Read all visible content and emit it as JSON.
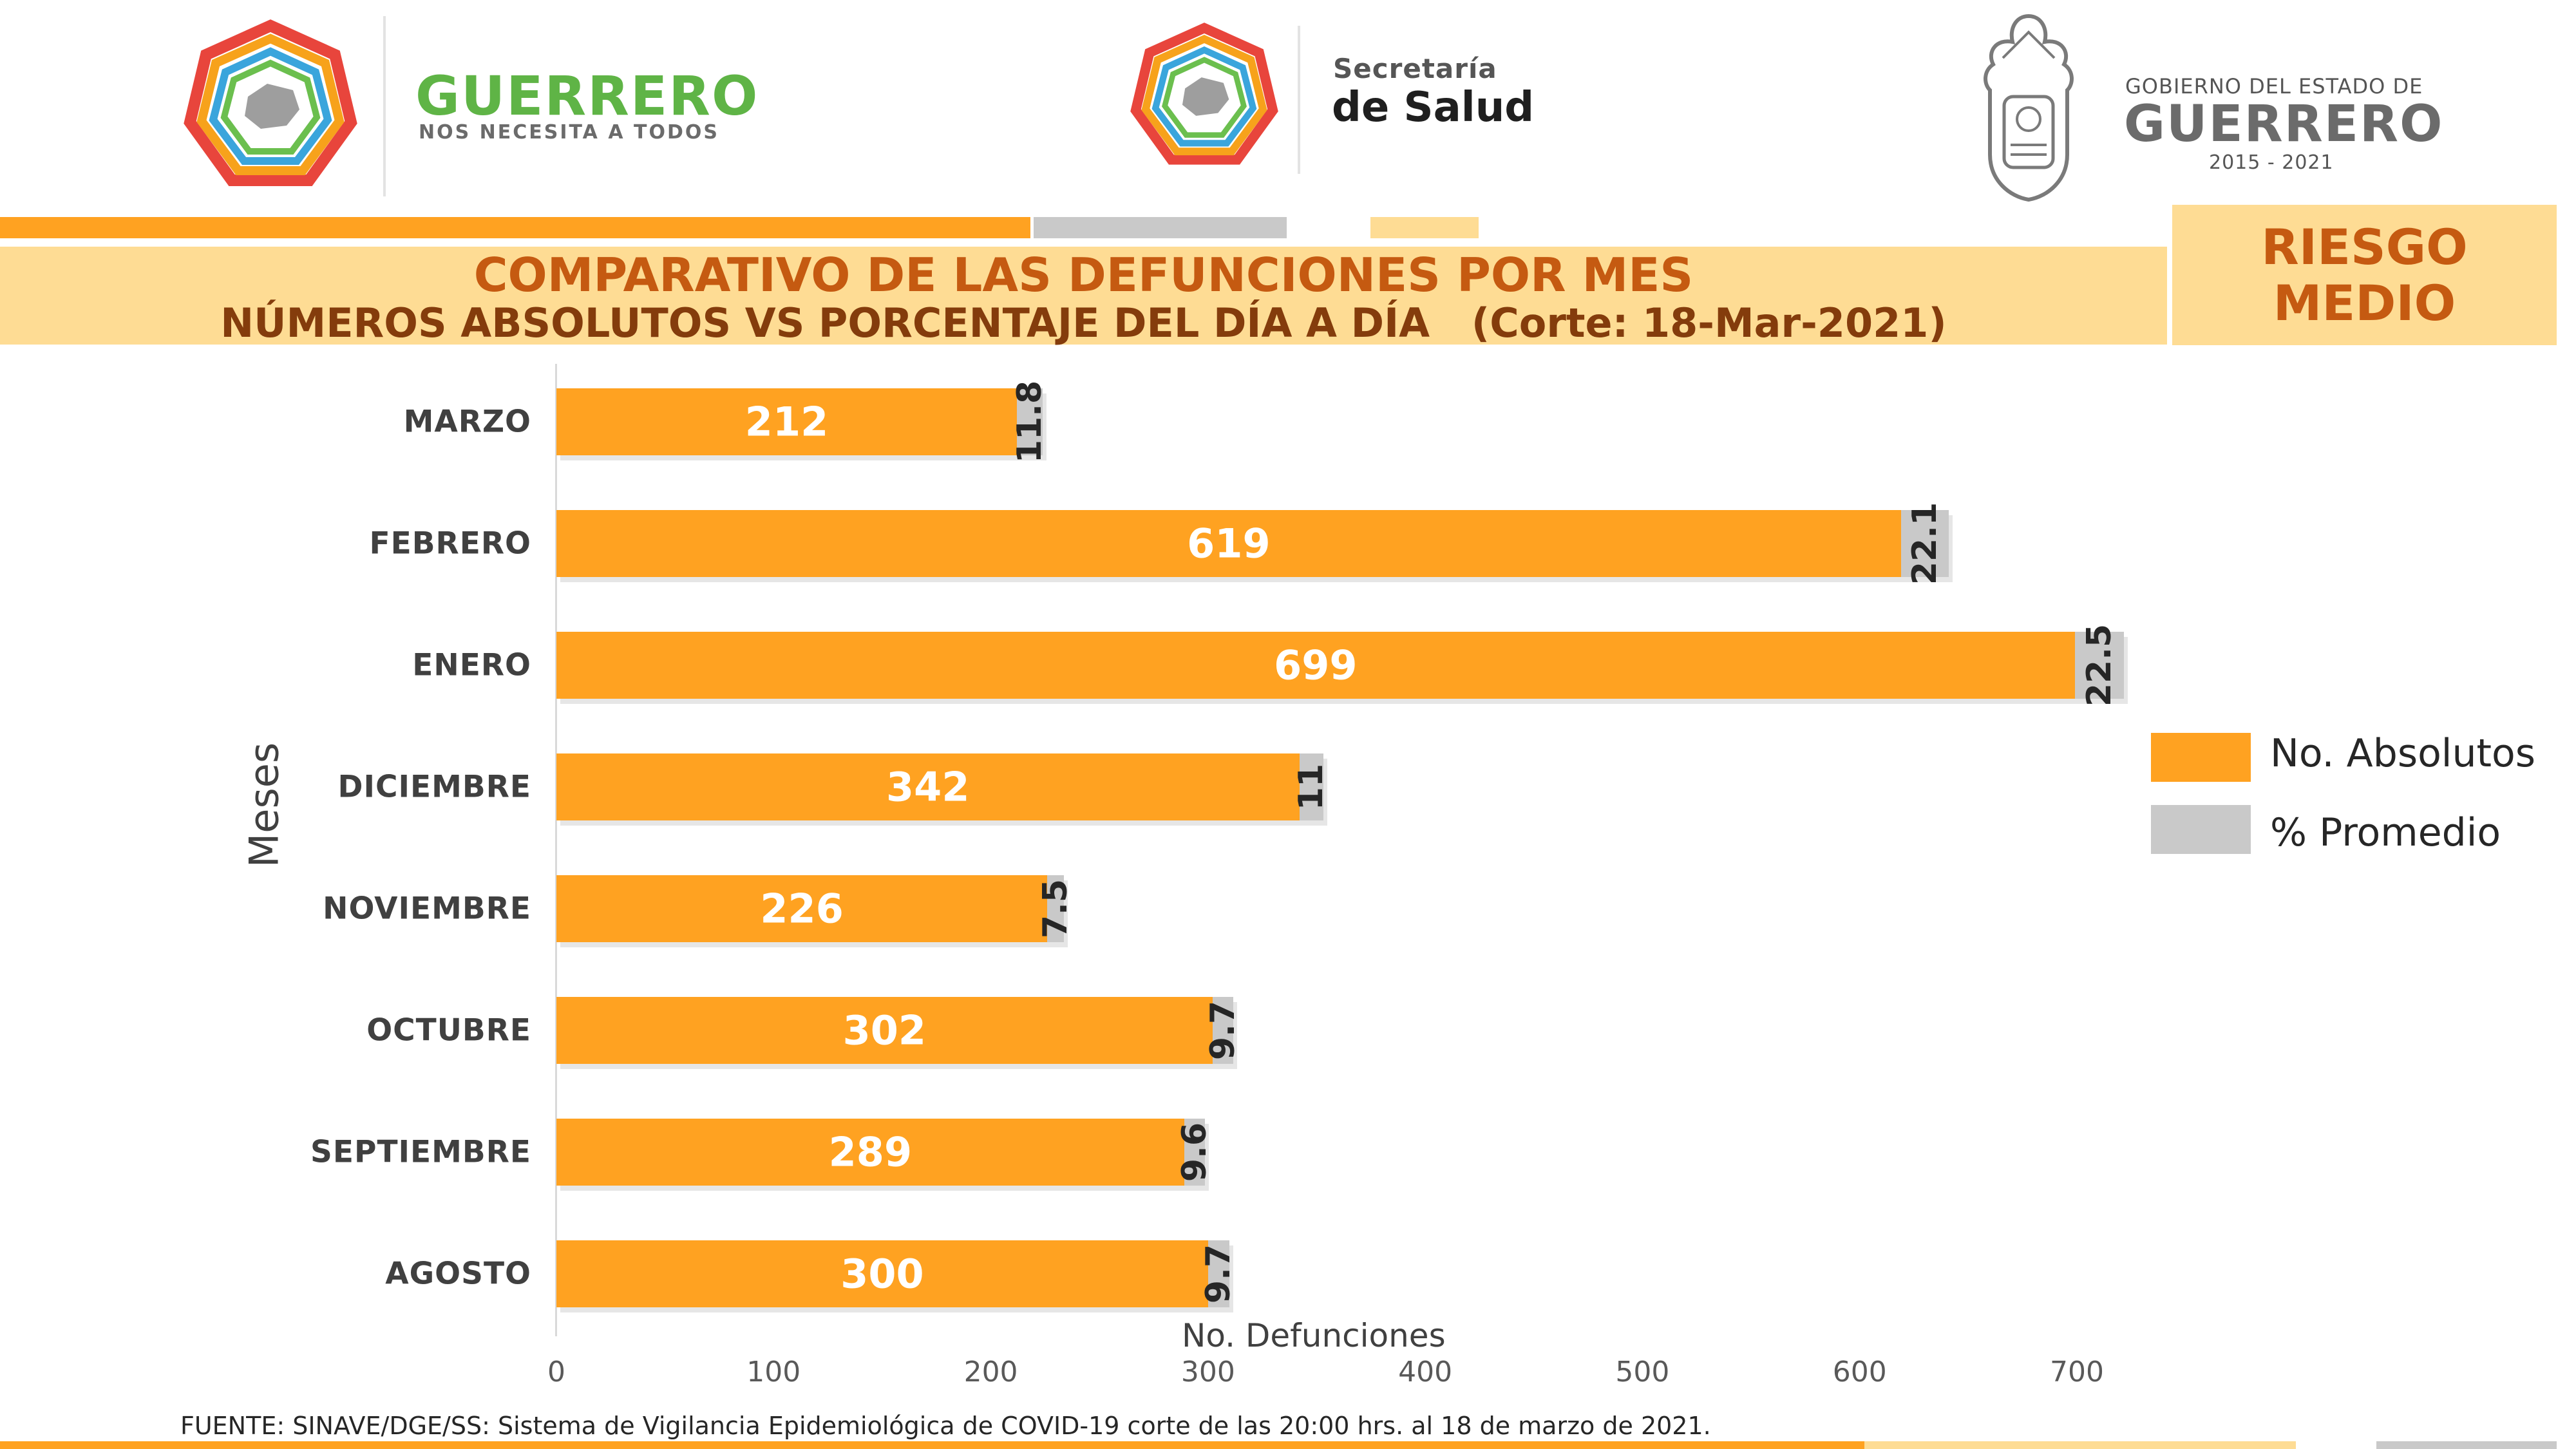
{
  "header": {
    "left_brand": {
      "title": "GUERRERO",
      "subtitle": "NOS NECESITA A TODOS"
    },
    "center_brand": {
      "line1": "Secretaría",
      "line2": "de Salud"
    },
    "right_brand": {
      "line1": "GOBIERNO DEL ESTADO DE",
      "line2": "GUERRERO",
      "line3": "2015 - 2021"
    }
  },
  "title_band": {
    "title": "COMPARATIVO DE LAS DEFUNCIONES POR MES",
    "subtitle": "NÚMEROS ABSOLUTOS VS PORCENTAJE DEL DÍA A DÍA   (Corte: 18-Mar-2021)"
  },
  "risk": {
    "line1": "RIESGO",
    "line2": "MEDIO"
  },
  "colors": {
    "orange": "#ffa221",
    "gray": "#c9c9c9",
    "title_text": "#c55a11",
    "band": "#fedc94",
    "green": "#5fb446"
  },
  "chart_data": {
    "type": "bar",
    "orientation": "horizontal",
    "categories": [
      "MARZO",
      "FEBRERO",
      "ENERO",
      "DICIEMBRE",
      "NOVIEMBRE",
      "OCTUBRE",
      "SEPTIEMBRE",
      "AGOSTO"
    ],
    "series": [
      {
        "name": "No. Absolutos",
        "values": [
          212,
          619,
          699,
          342,
          226,
          302,
          289,
          300
        ]
      },
      {
        "name": "% Promedio",
        "values": [
          11.8,
          22.1,
          22.5,
          11,
          7.5,
          9.7,
          9.6,
          9.7
        ]
      }
    ],
    "stacked": true,
    "xlabel": "No. Defunciones",
    "ylabel": "Meses",
    "xlim": [
      0,
      700
    ],
    "xticks": [
      "0",
      "100",
      "200",
      "300",
      "400",
      "500",
      "600",
      "700"
    ],
    "legend_position": "right",
    "grid": false
  },
  "footer": {
    "source": "FUENTE: SINAVE/DGE/SS: Sistema de Vigilancia Epidemiológica de COVID-19 corte de las 20:00 hrs. al 18 de  marzo de 2021."
  }
}
